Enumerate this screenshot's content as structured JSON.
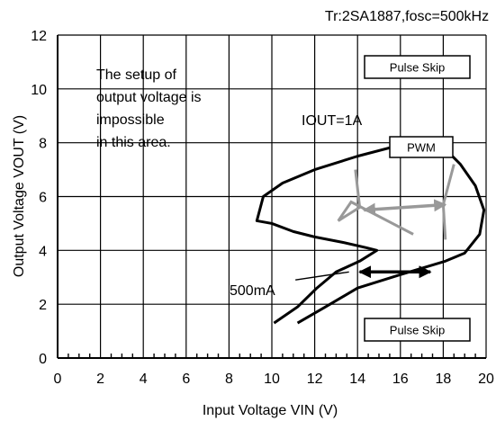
{
  "chart_data": {
    "type": "line",
    "title": "Tr:2SA1887,fosc=500kHz",
    "xlabel": "Input Voltage VIN (V)",
    "ylabel": "Output Voltage VOUT (V)",
    "xlim": [
      0,
      20
    ],
    "ylim": [
      0,
      12
    ],
    "xticks": [
      0,
      2,
      4,
      6,
      8,
      10,
      12,
      14,
      16,
      18,
      20
    ],
    "yticks": [
      0,
      2,
      4,
      6,
      8,
      10,
      12
    ],
    "grid": true,
    "series": [
      {
        "name": "IOUT=1A",
        "color": "#000000",
        "x": [
          10.1,
          11.2,
          12.1,
          13.0,
          14.1,
          14.9,
          14.4,
          13.3,
          12.0,
          11.0,
          10.0,
          9.3,
          9.6,
          10.5,
          12.0,
          14.0,
          16.4,
          17.8,
          18.8,
          19.5,
          19.9,
          19.7,
          19.0,
          18.1,
          16.0,
          14.0,
          12.5,
          11.2
        ],
        "y": [
          1.3,
          1.9,
          2.6,
          3.2,
          3.6,
          4.0,
          4.1,
          4.3,
          4.5,
          4.7,
          5.0,
          5.1,
          6.0,
          6.5,
          7.0,
          7.5,
          8.0,
          8.0,
          7.2,
          6.4,
          5.5,
          4.6,
          3.9,
          3.6,
          3.1,
          2.6,
          1.9,
          1.3
        ]
      }
    ],
    "annotations": [
      {
        "text": "IOUT=1A",
        "x": 14.0,
        "y": 8.4
      },
      {
        "text": "500mA",
        "x": 8.2,
        "y": 2.8
      },
      {
        "text": "PWM",
        "x": 16.8,
        "y": 7.6
      },
      {
        "text": "Pulse Skip",
        "x": 17.7,
        "y": 10.7
      },
      {
        "text": "Pulse Skip",
        "x": 17.7,
        "y": 1.45
      },
      {
        "text": "The setup of output voltage is impossible in this area.",
        "x": 1.6,
        "y": 10.1
      }
    ],
    "labels": {
      "note_lines": [
        "The setup of",
        "output voltage is",
        "impossible",
        "in this area."
      ],
      "iout_1a": "IOUT=1A",
      "iout_500ma": "500mA",
      "pwm": "PWM",
      "pulse_skip_top": "Pulse Skip",
      "pulse_skip_bottom": "Pulse Skip"
    },
    "colors": {
      "curve": "#000000",
      "gray": "#999999",
      "grid": "#000000"
    }
  }
}
